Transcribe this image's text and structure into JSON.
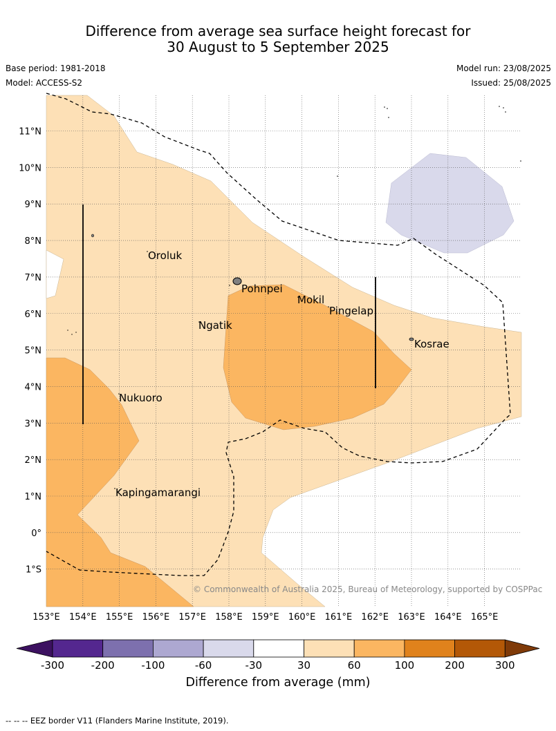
{
  "title": {
    "line1": "Difference from average sea surface height forecast for",
    "line2": "30 August to 5 September 2025"
  },
  "meta": {
    "base_period": "Base period: 1981-2018",
    "model": "Model: ACCESS-S2",
    "model_run": "Model run: 23/08/2025",
    "issued": "Issued: 25/08/2025"
  },
  "map": {
    "lat_labels": [
      "11°N",
      "10°N",
      "9°N",
      "8°N",
      "7°N",
      "6°N",
      "5°N",
      "4°N",
      "3°N",
      "2°N",
      "1°N",
      "0°",
      "1°S"
    ],
    "lon_labels": [
      "153°E",
      "154°E",
      "155°E",
      "156°E",
      "157°E",
      "158°E",
      "159°E",
      "160°E",
      "161°E",
      "162°E",
      "163°E",
      "164°E",
      "165°E"
    ],
    "places": [
      "Oroluk",
      "Pohnpei",
      "Mokil",
      "Pingelap",
      "Ngatik",
      "Kosrae",
      "Nukuoro",
      "Kapingamarangi"
    ],
    "copyright": "© Commonwealth of Australia 2025, Bureau of Meteorology, supported by COSPPac"
  },
  "colorbar": {
    "ticks": [
      "-300",
      "-200",
      "-100",
      "-60",
      "-30",
      "30",
      "60",
      "100",
      "200",
      "300"
    ],
    "colors": [
      "#3c1160",
      "#54278f",
      "#7d70ae",
      "#ada8d1",
      "#d9d9eb",
      "#ffffff",
      "#fde0b6",
      "#fbb661",
      "#e0821c",
      "#b35807",
      "#7f3a08"
    ],
    "label": "Difference from average (mm)"
  },
  "footer": "--  --  -- EEZ border V11 (Flanders Marine Institute, 2019)."
}
